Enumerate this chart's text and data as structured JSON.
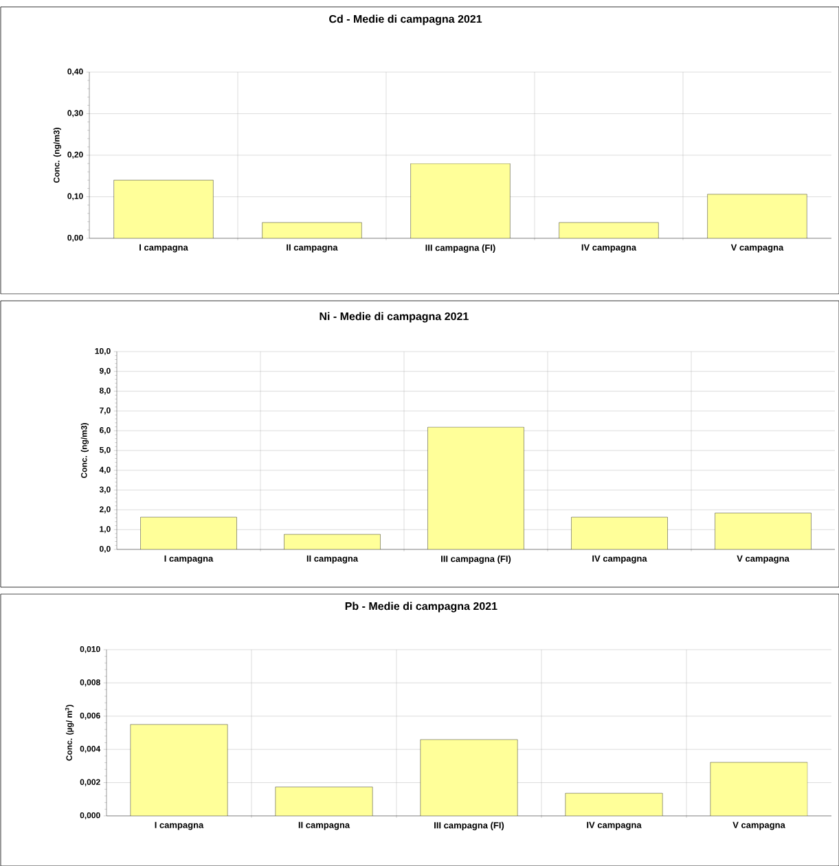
{
  "chart_data": [
    {
      "type": "bar",
      "title": "Cd - Medie di campagna 2021",
      "ylabel": "Conc. (ng/m3)",
      "categories": [
        "I campagna",
        "II campagna",
        "III campagna (FI)",
        "IV campagna",
        "V campagna"
      ],
      "values": [
        0.14,
        0.038,
        0.18,
        0.038,
        0.106
      ],
      "color": "#ffff99",
      "ylim": [
        0,
        0.4
      ],
      "yticks": [
        {
          "value": 0,
          "label": "0,00"
        },
        {
          "value": 0.1,
          "label": "0,10"
        },
        {
          "value": 0.2,
          "label": "0,20"
        },
        {
          "value": 0.3,
          "label": "0,30"
        },
        {
          "value": 0.4,
          "label": "0,40"
        }
      ],
      "grid": true
    },
    {
      "type": "bar",
      "title": "Ni - Medie di campagna 2021",
      "ylabel": "Conc. (ng/m3)",
      "categories": [
        "I campagna",
        "II campagna",
        "III campagna (FI)",
        "IV campagna",
        "V campagna"
      ],
      "values": [
        1.63,
        0.76,
        6.18,
        1.63,
        1.84
      ],
      "color": "#ffff99",
      "ylim": [
        0,
        10
      ],
      "yticks": [
        {
          "value": 0,
          "label": "0,0"
        },
        {
          "value": 1,
          "label": "1,0"
        },
        {
          "value": 2,
          "label": "2,0"
        },
        {
          "value": 3,
          "label": "3,0"
        },
        {
          "value": 4,
          "label": "4,0"
        },
        {
          "value": 5,
          "label": "5,0"
        },
        {
          "value": 6,
          "label": "6,0"
        },
        {
          "value": 7,
          "label": "7,0"
        },
        {
          "value": 8,
          "label": "8,0"
        },
        {
          "value": 9,
          "label": "9,0"
        },
        {
          "value": 10,
          "label": "10,0"
        }
      ],
      "grid": true
    },
    {
      "type": "bar",
      "title": "Pb - Medie di campagna 2021",
      "ylabel": "Conc. (µg/ m$^{3}$)",
      "categories": [
        "I campagna",
        "II campagna",
        "III campagna (FI)",
        "IV campagna",
        "V campagna"
      ],
      "values": [
        0.0055,
        0.00174,
        0.00459,
        0.00136,
        0.00322
      ],
      "color": "#ffff99",
      "ylim": [
        0,
        0.01
      ],
      "yticks": [
        {
          "value": 0,
          "label": "0,000"
        },
        {
          "value": 0.002,
          "label": "0,002"
        },
        {
          "value": 0.004,
          "label": "0,004"
        },
        {
          "value": 0.006,
          "label": "0,006"
        },
        {
          "value": 0.008,
          "label": "0,008"
        },
        {
          "value": 0.01,
          "label": "0,010"
        }
      ],
      "grid": true
    }
  ]
}
